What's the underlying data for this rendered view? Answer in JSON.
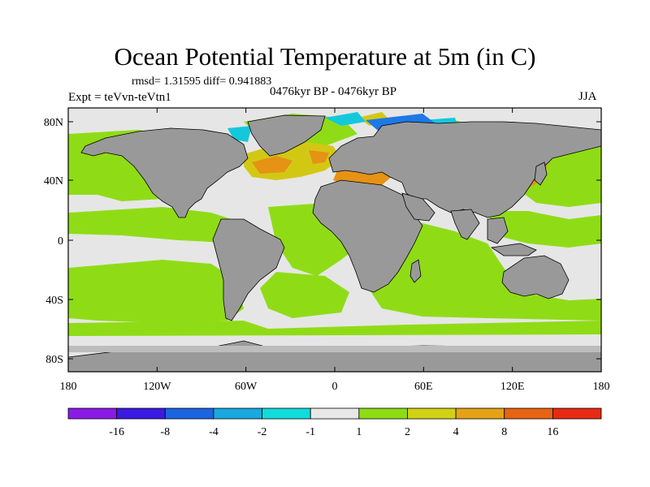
{
  "title": "Ocean Potential Temperature at 5m (in C)",
  "stats": "rmsd= 1.31595  diff= 0.941883",
  "experiment": "Expt = teVvn-teVtn1",
  "period": "0476kyr BP - 0476kyr BP",
  "season": "JJA",
  "map": {
    "lat_ticks": [
      "80N",
      "40N",
      "0",
      "40S",
      "80S"
    ],
    "lon_ticks": [
      "180",
      "120W",
      "60W",
      "0",
      "60E",
      "120E",
      "180"
    ]
  },
  "colorbar": {
    "labels": [
      "-16",
      "-8",
      "-4",
      "-2",
      "-1",
      "1",
      "2",
      "4",
      "8",
      "16"
    ],
    "colors": [
      "#8a1ae6",
      "#3a1ae0",
      "#1a64e0",
      "#19a8e0",
      "#10dcdc",
      "#e8e8e8",
      "#8ddc14",
      "#d2d214",
      "#e6a214",
      "#e66414",
      "#e62a14"
    ]
  },
  "colors": {
    "land": "#999999",
    "neutral": "#e6e6e6",
    "warm_light": "#8fdc16",
    "warm_mid": "#d2c814",
    "warm_high": "#e69214",
    "cool_light": "#14c8dc",
    "cool_mid": "#1e78e6"
  }
}
